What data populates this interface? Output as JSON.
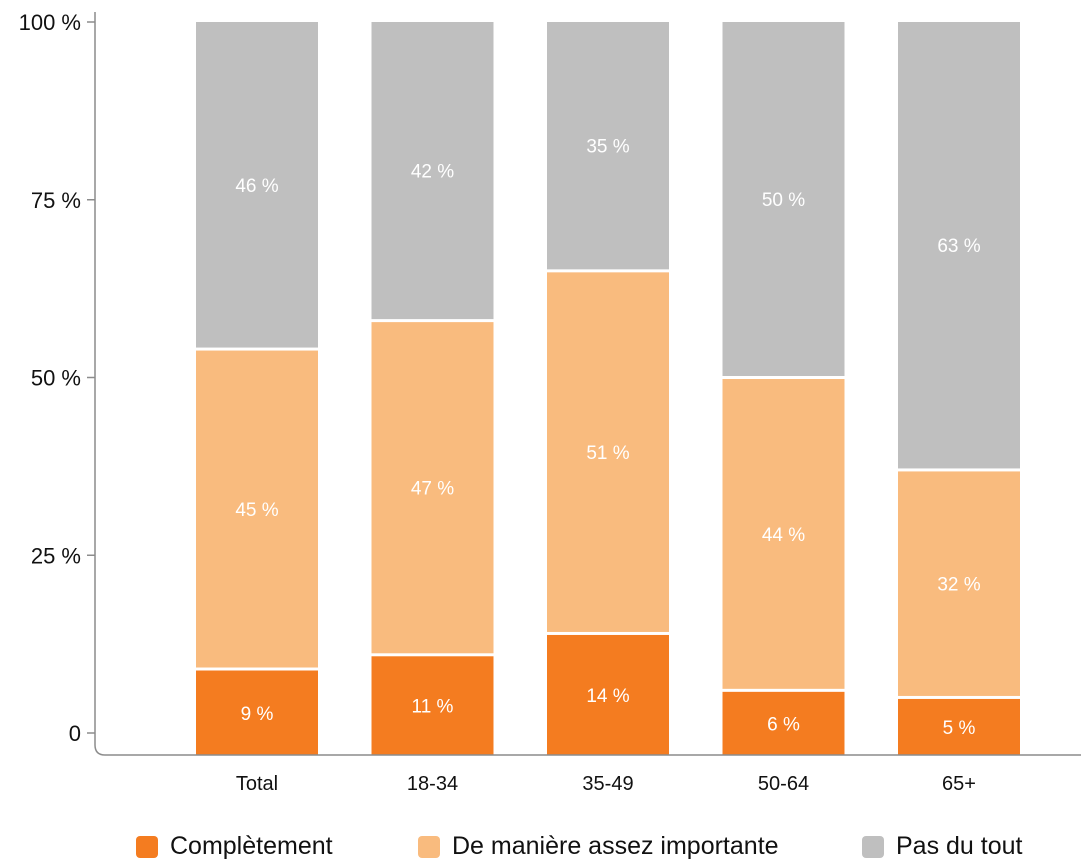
{
  "chart_data": {
    "type": "bar",
    "stacked": true,
    "categories": [
      "Total",
      "18-34",
      "35-49",
      "50-64",
      "65+"
    ],
    "series": [
      {
        "name": "Complètement",
        "values": [
          9,
          11,
          14,
          6,
          5
        ],
        "labels": [
          "9 %",
          "11 %",
          "14 %",
          "6 %",
          "5 %"
        ],
        "color": "#f47c20"
      },
      {
        "name": "De manière assez importante",
        "values": [
          45,
          47,
          51,
          44,
          32
        ],
        "labels": [
          "45 %",
          "47 %",
          "51 %",
          "44 %",
          "32 %"
        ],
        "color": "#f9bb7e"
      },
      {
        "name": "Pas du tout",
        "values": [
          46,
          42,
          35,
          50,
          63
        ],
        "labels": [
          "46 %",
          "42 %",
          "35 %",
          "50 %",
          "63 %"
        ],
        "color": "#bfbfbf"
      }
    ],
    "ylim": [
      0,
      100
    ],
    "yticks": [
      0,
      25,
      50,
      75,
      100
    ],
    "ytick_labels": [
      "0",
      "25 %",
      "50 %",
      "75 %",
      "100 %"
    ],
    "legend_position": "bottom",
    "grid": false
  }
}
